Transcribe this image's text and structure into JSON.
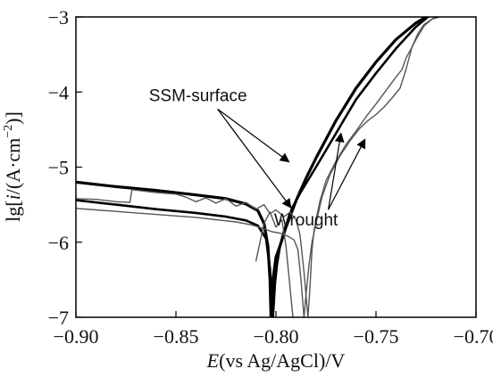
{
  "chart_data": {
    "type": "line",
    "xlabel": {
      "italic": "E",
      "rest": "(vs Ag/AgCl)/V"
    },
    "ylabel": {
      "pre": "lg[",
      "italic": "i",
      "mid": "/(A·cm",
      "sup": "−2",
      "post": ")]"
    },
    "xlim": [
      -0.9,
      -0.7
    ],
    "ylim": [
      -7,
      -3
    ],
    "xticks": [
      -0.9,
      -0.85,
      -0.8,
      -0.75,
      -0.7
    ],
    "xtick_labels": [
      "−0.90",
      "−0.85",
      "−0.80",
      "−0.75",
      "−0.70"
    ],
    "yticks": [
      -7,
      -6,
      -5,
      -4,
      -3
    ],
    "ytick_labels": [
      "−7",
      "−6",
      "−5",
      "−4",
      "−3"
    ],
    "grid": false,
    "annotations": [
      {
        "text": "SSM-surface",
        "x": -0.839,
        "y": -4.12,
        "arrows_to": [
          [
            -0.7935,
            -4.93
          ],
          [
            -0.7925,
            -5.54
          ]
        ]
      },
      {
        "text": "Wrought",
        "x": -0.785,
        "y": -5.78,
        "arrows_to": [
          [
            -0.7675,
            -4.55
          ],
          [
            -0.7555,
            -4.63
          ]
        ]
      }
    ],
    "series": [
      {
        "group": "SSM-surface",
        "color": "#000000",
        "width": 3.2,
        "x": [
          -0.9,
          -0.88,
          -0.86,
          -0.84,
          -0.825,
          -0.815,
          -0.809,
          -0.806,
          -0.804,
          -0.803,
          -0.8025,
          -0.8015,
          -0.8,
          -0.798,
          -0.795,
          -0.79,
          -0.785,
          -0.78,
          -0.77,
          -0.76,
          -0.75,
          -0.74,
          -0.73,
          -0.725
        ],
        "y": [
          -5.2,
          -5.26,
          -5.31,
          -5.37,
          -5.42,
          -5.49,
          -5.58,
          -5.75,
          -6.05,
          -6.5,
          -7.0,
          -6.5,
          -6.2,
          -6.05,
          -5.8,
          -5.45,
          -5.15,
          -4.88,
          -4.38,
          -3.95,
          -3.6,
          -3.3,
          -3.08,
          -3.0
        ]
      },
      {
        "group": "SSM-surface",
        "color": "#000000",
        "width": 2.6,
        "x": [
          -0.9,
          -0.88,
          -0.86,
          -0.84,
          -0.825,
          -0.815,
          -0.809,
          -0.805,
          -0.803,
          -0.8015,
          -0.8005,
          -0.7995,
          -0.798,
          -0.796,
          -0.792,
          -0.788,
          -0.78,
          -0.77,
          -0.76,
          -0.75,
          -0.74,
          -0.73,
          -0.724
        ],
        "y": [
          -5.44,
          -5.5,
          -5.56,
          -5.61,
          -5.66,
          -5.71,
          -5.78,
          -5.95,
          -6.35,
          -7.0,
          -6.55,
          -6.3,
          -6.05,
          -5.85,
          -5.55,
          -5.35,
          -5.0,
          -4.55,
          -4.1,
          -3.75,
          -3.42,
          -3.13,
          -3.0
        ]
      },
      {
        "group": "Wrought",
        "color": "#555555",
        "width": 1.4,
        "x": [
          -0.9,
          -0.89,
          -0.88,
          -0.873,
          -0.872,
          -0.86,
          -0.85,
          -0.845,
          -0.84,
          -0.835,
          -0.83,
          -0.825,
          -0.82,
          -0.815,
          -0.81,
          -0.806,
          -0.803,
          -0.8,
          -0.796,
          -0.793,
          -0.79,
          -0.788,
          -0.786,
          -0.784,
          -0.783,
          -0.782,
          -0.781,
          -0.78,
          -0.778,
          -0.775,
          -0.77,
          -0.765,
          -0.76,
          -0.755,
          -0.75,
          -0.745,
          -0.74,
          -0.737,
          -0.735,
          -0.733,
          -0.73,
          -0.726,
          -0.722,
          -0.72
        ],
        "y": [
          -5.42,
          -5.43,
          -5.46,
          -5.47,
          -5.3,
          -5.34,
          -5.36,
          -5.4,
          -5.46,
          -5.41,
          -5.48,
          -5.42,
          -5.52,
          -5.47,
          -5.56,
          -5.5,
          -5.62,
          -5.57,
          -5.66,
          -5.6,
          -5.7,
          -5.9,
          -6.4,
          -7.0,
          -6.6,
          -6.1,
          -5.85,
          -5.7,
          -5.45,
          -5.18,
          -4.92,
          -4.7,
          -4.52,
          -4.33,
          -4.16,
          -3.98,
          -3.8,
          -3.7,
          -3.55,
          -3.45,
          -3.3,
          -3.12,
          -3.03,
          -3.0
        ]
      },
      {
        "group": "Wrought",
        "color": "#555555",
        "width": 1.4,
        "x": [
          -0.9,
          -0.89,
          -0.88,
          -0.87,
          -0.86,
          -0.85,
          -0.84,
          -0.83,
          -0.82,
          -0.812,
          -0.806,
          -0.802,
          -0.798,
          -0.794,
          -0.791,
          -0.789,
          -0.7875,
          -0.786,
          -0.785,
          -0.7835,
          -0.782,
          -0.78,
          -0.777,
          -0.773,
          -0.768,
          -0.763,
          -0.758,
          -0.754,
          -0.75,
          -0.746,
          -0.742,
          -0.738,
          -0.735,
          -0.732,
          -0.729,
          -0.726,
          -0.722,
          -0.718
        ],
        "y": [
          -5.55,
          -5.57,
          -5.59,
          -5.61,
          -5.63,
          -5.65,
          -5.67,
          -5.7,
          -5.73,
          -5.77,
          -5.82,
          -5.86,
          -5.88,
          -5.92,
          -5.97,
          -6.1,
          -6.5,
          -7.0,
          -6.7,
          -6.3,
          -6.0,
          -5.75,
          -5.4,
          -5.1,
          -4.85,
          -4.65,
          -4.48,
          -4.38,
          -4.3,
          -4.2,
          -4.08,
          -3.95,
          -3.7,
          -3.4,
          -3.22,
          -3.1,
          -3.03,
          -3.0
        ]
      },
      {
        "group": "Wrought",
        "color": "#555555",
        "width": 1.4,
        "x": [
          -0.81,
          -0.806,
          -0.803,
          -0.8,
          -0.797,
          -0.795,
          -0.793,
          -0.7915
        ],
        "y": [
          -6.25,
          -5.75,
          -5.6,
          -5.8,
          -5.7,
          -6.05,
          -6.6,
          -7.0
        ]
      }
    ]
  }
}
